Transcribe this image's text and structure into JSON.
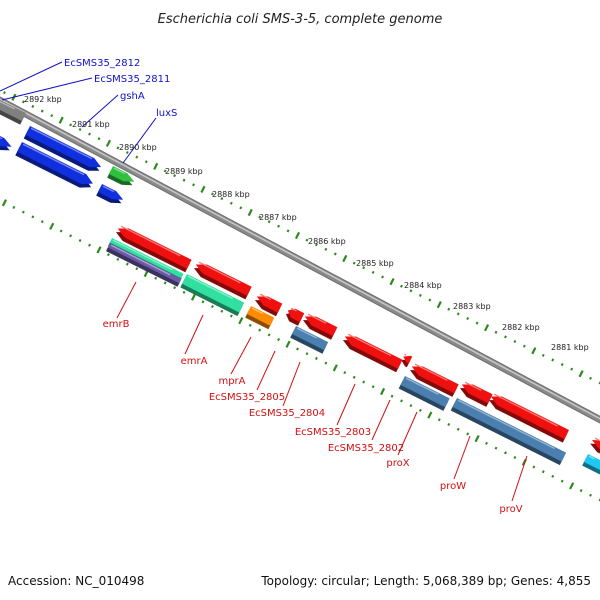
{
  "title": "Escherichia coli SMS-3-5, complete genome",
  "footer": {
    "accession": "Accession: NC_010498",
    "summary": "Topology: circular; Length: 5,068,389 bp; Genes: 4,855"
  },
  "colors": {
    "backbone": "#8a8a8a",
    "tick": "#2a8a1a",
    "forward_label": "#1010c8",
    "reverse_label": "#d01010",
    "gene_blue": "#1030e0",
    "gene_red": "#f01010",
    "gene_green": "#30c040",
    "gene_gray": "#808080",
    "gene_teal": "#30e0a0",
    "gene_orange": "#ff8c00",
    "gene_steel": "#4a7fb0",
    "gene_cyan": "#20c8f0",
    "gene_purple": "#6a5aa8"
  },
  "scale_labels": [
    "2892 kbp",
    "2891 kbp",
    "2890 kbp",
    "2889 kbp",
    "2888 kbp",
    "2887 kbp",
    "2886 kbp",
    "2885 kbp",
    "2884 kbp",
    "2883 kbp",
    "2882 kbp",
    "2881 kbp"
  ],
  "forward_labels": [
    "EcSMS35_2812",
    "EcSMS35_2811",
    "gshA",
    "luxS"
  ],
  "reverse_labels": [
    "emrB",
    "emrA",
    "mprA",
    "EcSMS35_2805",
    "EcSMS35_2804",
    "EcSMS35_2803",
    "EcSMS35_2802",
    "proX",
    "proW",
    "proV"
  ]
}
